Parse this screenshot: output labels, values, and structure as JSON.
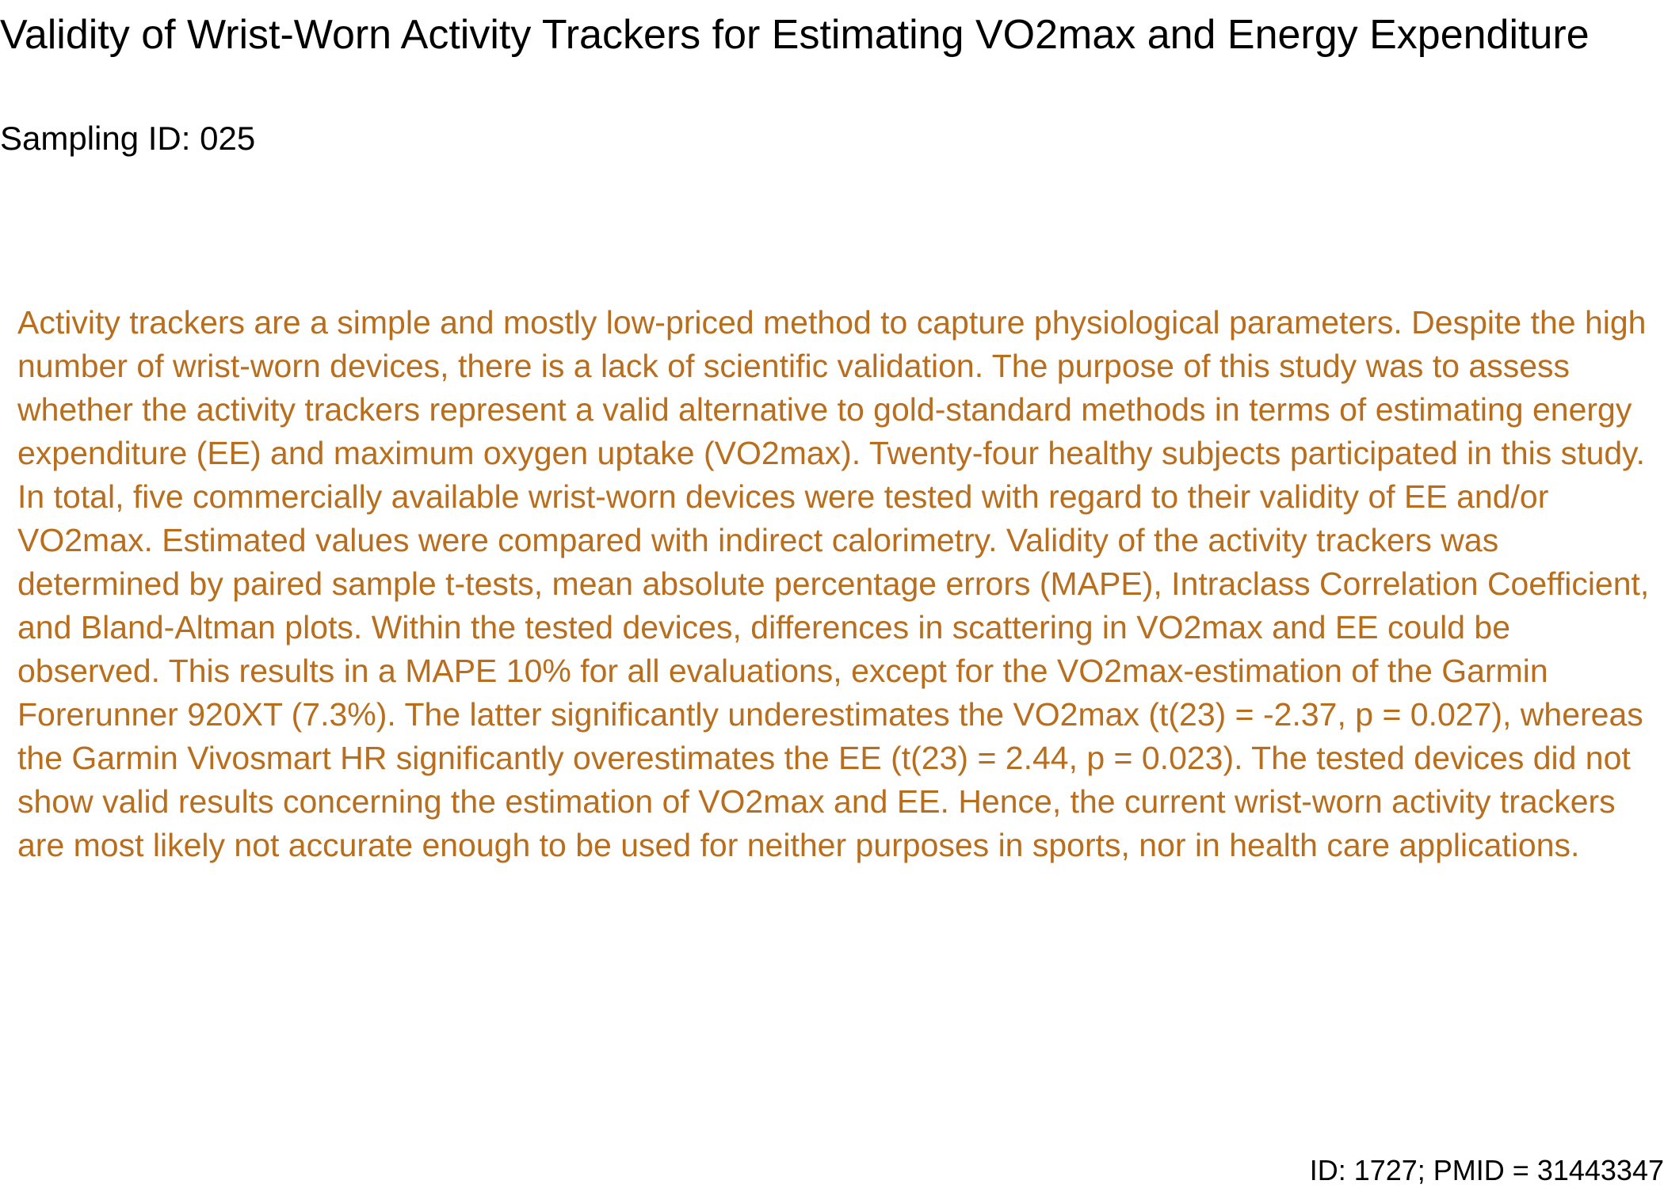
{
  "document": {
    "title": "Validity of Wrist-Worn Activity Trackers for Estimating VO2max and Energy Expenditure",
    "sampling_id": "Sampling ID: 025",
    "abstract": "Activity trackers are a simple and mostly low-priced method to capture physiological parameters. Despite the high number of wrist-worn devices, there is a lack of scientific validation. The purpose of this study was to assess whether the activity trackers represent a valid alternative to gold-standard methods in terms of estimating energy expenditure (EE) and maximum oxygen uptake (VO2max). Twenty-four healthy subjects participated in this study. In total, five commercially available wrist-worn devices were tested with regard to their validity of EE and/or VO2max. Estimated values were compared with indirect calorimetry. Validity of the activity trackers was determined by paired sample t-tests, mean absolute percentage errors (MAPE), Intraclass Correlation Coefficient, and Bland-Altman plots. Within the tested devices, differences in scattering in VO2max and EE could be observed. This results in a MAPE 10% for all evaluations, except for the VO2max-estimation of the Garmin Forerunner 920XT (7.3%). The latter significantly underestimates the VO2max (t(23) = -2.37, p = 0.027), whereas the Garmin Vivosmart HR significantly overestimates the EE (t(23) = 2.44, p = 0.023). The tested devices did not show valid results concerning the estimation of VO2max and EE. Hence, the current wrist-worn activity trackers are most likely not accurate enough to be used for neither purposes in sports, nor in health care applications.",
    "footer_id": "ID: 1727; PMID = 31443347"
  },
  "colors": {
    "title_text": "#000000",
    "abstract_text": "#b86e1c",
    "background": "#ffffff"
  }
}
